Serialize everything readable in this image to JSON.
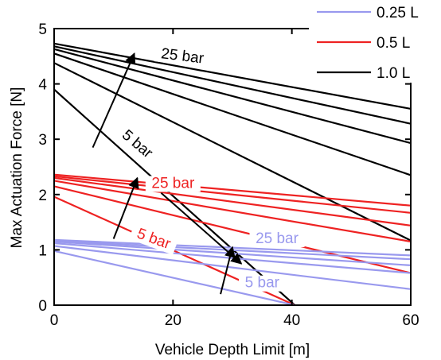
{
  "chart_data": {
    "type": "line",
    "xlabel": "Vehicle Depth Limit [m]",
    "ylabel": "Max Actuation Force [N]",
    "xlim": [
      0,
      60
    ],
    "ylim": [
      0,
      5
    ],
    "xticks": [
      "0",
      "20",
      "40",
      "60"
    ],
    "yticks": [
      "0",
      "1",
      "2",
      "3",
      "4",
      "5"
    ],
    "grid": false,
    "legend_position": "top-right",
    "legend": [
      {
        "name": "0.25 L",
        "color": "#9999ee"
      },
      {
        "name": "0.5 L",
        "color": "#ee2222"
      },
      {
        "name": "1.0 L",
        "color": "#000000"
      }
    ],
    "series": [
      {
        "group": "1.0 L",
        "color": "#000000",
        "pressure": "25 bar",
        "points": [
          [
            0,
            4.73
          ],
          [
            60,
            3.55
          ]
        ]
      },
      {
        "group": "1.0 L",
        "color": "#000000",
        "points": [
          [
            0,
            4.68
          ],
          [
            60,
            3.28
          ]
        ]
      },
      {
        "group": "1.0 L",
        "color": "#000000",
        "points": [
          [
            0,
            4.63
          ],
          [
            60,
            2.93
          ]
        ]
      },
      {
        "group": "1.0 L",
        "color": "#000000",
        "points": [
          [
            0,
            4.55
          ],
          [
            60,
            2.35
          ]
        ]
      },
      {
        "group": "1.0 L",
        "color": "#000000",
        "points": [
          [
            0,
            4.38
          ],
          [
            60,
            1.17
          ]
        ]
      },
      {
        "group": "1.0 L",
        "color": "#000000",
        "pressure": "5 bar",
        "points": [
          [
            0,
            3.9
          ],
          [
            40.5,
            0
          ]
        ]
      },
      {
        "group": "0.5 L",
        "color": "#ee2222",
        "pressure": "25 bar",
        "points": [
          [
            0,
            2.36
          ],
          [
            60,
            1.8
          ]
        ]
      },
      {
        "group": "0.5 L",
        "color": "#ee2222",
        "points": [
          [
            0,
            2.33
          ],
          [
            60,
            1.67
          ]
        ]
      },
      {
        "group": "0.5 L",
        "color": "#ee2222",
        "points": [
          [
            0,
            2.3
          ],
          [
            60,
            1.44
          ]
        ]
      },
      {
        "group": "0.5 L",
        "color": "#ee2222",
        "points": [
          [
            0,
            2.25
          ],
          [
            60,
            1.15
          ]
        ]
      },
      {
        "group": "0.5 L",
        "color": "#ee2222",
        "points": [
          [
            0,
            2.15
          ],
          [
            60,
            0.58
          ]
        ]
      },
      {
        "group": "0.5 L",
        "color": "#ee2222",
        "pressure": "5 bar",
        "points": [
          [
            0,
            1.96
          ],
          [
            40.5,
            0
          ]
        ]
      },
      {
        "group": "0.25 L",
        "color": "#9999ee",
        "pressure": "25 bar",
        "points": [
          [
            0,
            1.18
          ],
          [
            60,
            0.9
          ]
        ]
      },
      {
        "group": "0.25 L",
        "color": "#9999ee",
        "points": [
          [
            0,
            1.16
          ],
          [
            60,
            0.83
          ]
        ]
      },
      {
        "group": "0.25 L",
        "color": "#9999ee",
        "points": [
          [
            0,
            1.15
          ],
          [
            60,
            0.72
          ]
        ]
      },
      {
        "group": "0.25 L",
        "color": "#9999ee",
        "points": [
          [
            0,
            1.12
          ],
          [
            60,
            0.58
          ]
        ]
      },
      {
        "group": "0.25 L",
        "color": "#9999ee",
        "points": [
          [
            0,
            1.07
          ],
          [
            60,
            0.29
          ]
        ]
      },
      {
        "group": "0.25 L",
        "color": "#9999ee",
        "pressure": "5 bar",
        "points": [
          [
            0,
            0.98
          ],
          [
            40.5,
            0
          ]
        ]
      }
    ],
    "annotations": [
      {
        "text": "25 bar",
        "color": "#000000",
        "x": 21.5,
        "y": 4.42,
        "angle": 7
      },
      {
        "text": "5 bar",
        "color": "#000000",
        "x": 13.5,
        "y": 2.85,
        "angle": 40
      },
      {
        "text": "25 bar",
        "color": "#ee2222",
        "x": 20,
        "y": 2.12,
        "angle": 0
      },
      {
        "text": "5 bar",
        "color": "#ee2222",
        "x": 16.5,
        "y": 1.12,
        "angle": 20
      },
      {
        "text": "25 bar",
        "color": "#9999ee",
        "x": 37.5,
        "y": 1.12,
        "angle": 0
      },
      {
        "text": "5 bar",
        "color": "#9999ee",
        "x": 35,
        "y": 0.32,
        "angle": 0
      }
    ],
    "arrows": [
      {
        "color": "#000000",
        "from": [
          6.5,
          2.85
        ],
        "to": [
          13.5,
          4.55
        ]
      },
      {
        "color": "#000000",
        "from": [
          18,
          2.03
        ],
        "to": [
          31.5,
          0.75
        ]
      },
      {
        "color": "#000000",
        "from": [
          10.0,
          1.2
        ],
        "to": [
          14.0,
          2.3
        ]
      },
      {
        "color": "#000000",
        "from": [
          28.0,
          0.2
        ],
        "to": [
          30.0,
          1.05
        ]
      }
    ]
  }
}
